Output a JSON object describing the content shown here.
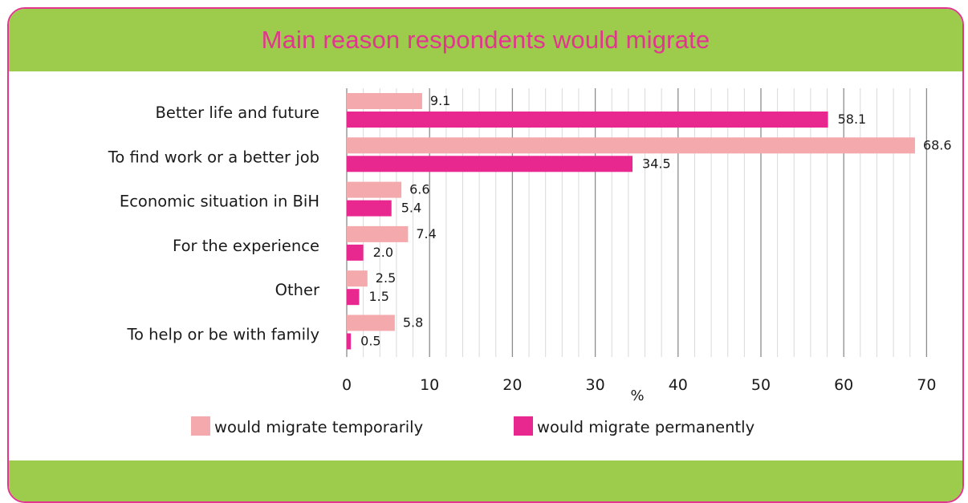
{
  "header": {
    "title": "Main reason respondents would migrate"
  },
  "colors": {
    "header_bg": "#9dcb4c",
    "border": "#e2358f",
    "temporary": "#f4a9ad",
    "permanent": "#e8288f"
  },
  "chart_data": {
    "type": "bar",
    "orientation": "horizontal",
    "title": "Main reason respondents would migrate",
    "xlabel": "%",
    "ylabel": "",
    "xlim": [
      0,
      70
    ],
    "x_ticks": [
      "0",
      "10",
      "20",
      "30",
      "40",
      "50",
      "60",
      "70"
    ],
    "grid": "vertical lines",
    "legend_position": "bottom",
    "categories": [
      "Better life and future",
      "To find work or a better job",
      "Economic situation in BiH",
      "For the experience",
      "Other",
      "To help or be with family"
    ],
    "series": [
      {
        "name": "would migrate temporarily",
        "color": "#f4a9ad",
        "values": [
          9.1,
          68.6,
          6.6,
          7.4,
          2.5,
          5.8
        ],
        "labels": [
          "9.1",
          "68.6",
          "6.6",
          "7.4",
          "2.5",
          "5.8"
        ]
      },
      {
        "name": "would migrate permanently",
        "color": "#e8288f",
        "values": [
          58.1,
          34.5,
          5.4,
          2.0,
          1.5,
          0.5
        ],
        "labels": [
          "58.1",
          "34.5",
          "5.4",
          "2.0",
          "1.5",
          "0.5"
        ]
      }
    ]
  }
}
